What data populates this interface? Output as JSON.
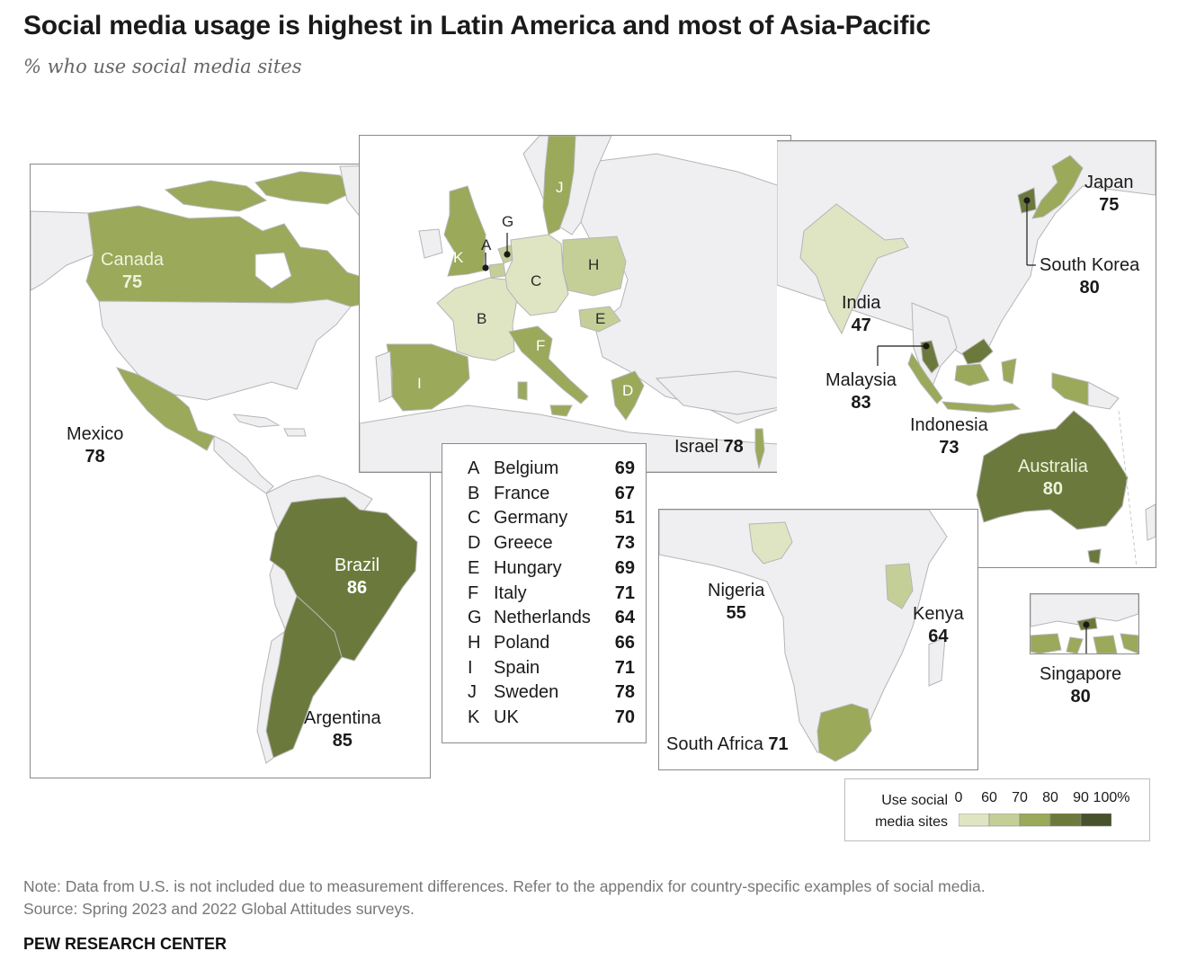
{
  "title": "Social media usage is highest in Latin America and most of Asia-Pacific",
  "subtitle": "% who use social media sites",
  "colors": {
    "no_data": "#efeff1",
    "bin_0_60": "#dfe5c3",
    "bin_60_70": "#c4cf98",
    "bin_70_80": "#9aa95a",
    "bin_80_90": "#6b7a3c",
    "bin_90_100": "#47522a",
    "border": "#b5b5b5"
  },
  "americas": {
    "canada": {
      "name": "Canada",
      "value": "75"
    },
    "mexico": {
      "name": "Mexico",
      "value": "78"
    },
    "brazil": {
      "name": "Brazil",
      "value": "86"
    },
    "argentina": {
      "name": "Argentina",
      "value": "85"
    }
  },
  "europe": {
    "letters": [
      "A",
      "B",
      "C",
      "D",
      "E",
      "F",
      "G",
      "H",
      "I",
      "J",
      "K"
    ],
    "israel": {
      "name": "Israel",
      "value": "78"
    }
  },
  "europe_legend": [
    {
      "code": "A",
      "name": "Belgium",
      "value": "69"
    },
    {
      "code": "B",
      "name": "France",
      "value": "67"
    },
    {
      "code": "C",
      "name": "Germany",
      "value": "51"
    },
    {
      "code": "D",
      "name": "Greece",
      "value": "73"
    },
    {
      "code": "E",
      "name": "Hungary",
      "value": "69"
    },
    {
      "code": "F",
      "name": "Italy",
      "value": "71"
    },
    {
      "code": "G",
      "name": "Netherlands",
      "value": "64"
    },
    {
      "code": "H",
      "name": "Poland",
      "value": "66"
    },
    {
      "code": "I",
      "name": "Spain",
      "value": "71"
    },
    {
      "code": "J",
      "name": "Sweden",
      "value": "78"
    },
    {
      "code": "K",
      "name": "UK",
      "value": "70"
    }
  ],
  "africa": {
    "nigeria": {
      "name": "Nigeria",
      "value": "55"
    },
    "kenya": {
      "name": "Kenya",
      "value": "64"
    },
    "south_africa": {
      "name": "South Africa",
      "value": "71"
    }
  },
  "asia_pacific": {
    "japan": {
      "name": "Japan",
      "value": "75"
    },
    "south_korea": {
      "name": "South Korea",
      "value": "80"
    },
    "india": {
      "name": "India",
      "value": "47"
    },
    "malaysia": {
      "name": "Malaysia",
      "value": "83"
    },
    "indonesia": {
      "name": "Indonesia",
      "value": "73"
    },
    "australia": {
      "name": "Australia",
      "value": "80"
    },
    "singapore": {
      "name": "Singapore",
      "value": "80"
    }
  },
  "scale_legend": {
    "label_line1": "Use social",
    "label_line2": "media sites",
    "ticks": [
      "0",
      "60",
      "70",
      "80",
      "90",
      "100%"
    ]
  },
  "note": "Note: Data from U.S. is not included due to measurement differences. Refer to the appendix for country-specific examples of social media.",
  "source": "Source: Spring 2023 and 2022 Global Attitudes surveys.",
  "brand": "PEW RESEARCH CENTER"
}
